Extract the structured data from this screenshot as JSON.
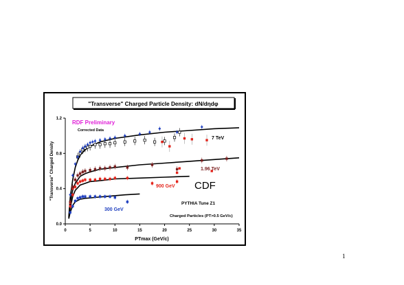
{
  "page_number": "1",
  "chart_data": {
    "type": "scatter",
    "title": "\"Transverse\" Charged Particle Density: dN/dηdφ",
    "xlabel": "PTmax  (GeV/c)",
    "ylabel": "\"Transverse\" Charged Density",
    "xlim": [
      0,
      35
    ],
    "ylim": [
      0,
      1.2
    ],
    "x_ticks": [
      "0",
      "5",
      "10",
      "15",
      "20",
      "25",
      "30",
      "35"
    ],
    "y_ticks": [
      "0.0",
      "0.4",
      "0.8",
      "1.2"
    ],
    "grid": false,
    "annotations": {
      "rdf": "RDF Preliminary",
      "corrected": "Corrected Data",
      "cdf": "CDF",
      "pythia": "PYTHIA Tune Z1",
      "charged": "Charged Particles (PT>0.5 GeV/c)"
    },
    "series": [
      {
        "name": "7 TeV",
        "color": "#1a1a1a",
        "data_marker": "blue-diamond",
        "data": [
          [
            1,
            0.33
          ],
          [
            1.5,
            0.55
          ],
          [
            2,
            0.68
          ],
          [
            2.5,
            0.76
          ],
          [
            3,
            0.82
          ],
          [
            3.5,
            0.86
          ],
          [
            4,
            0.88
          ],
          [
            4.5,
            0.9
          ],
          [
            5,
            0.92
          ],
          [
            5.5,
            0.93
          ],
          [
            6,
            0.94
          ],
          [
            7,
            0.95
          ],
          [
            8,
            0.96
          ],
          [
            9,
            0.97
          ],
          [
            10,
            0.98
          ],
          [
            12,
            1.0
          ],
          [
            15,
            1.02
          ],
          [
            17,
            1.04
          ],
          [
            19,
            1.08
          ],
          [
            22.5,
            1.04
          ],
          [
            27.5,
            1.1
          ]
        ],
        "corrected": [
          [
            2.5,
            0.76
          ],
          [
            3,
            0.8
          ],
          [
            3.5,
            0.84
          ],
          [
            4,
            0.86
          ],
          [
            4.5,
            0.87
          ],
          [
            5,
            0.88
          ],
          [
            6,
            0.9
          ],
          [
            7,
            0.9
          ],
          [
            8,
            0.91
          ],
          [
            9,
            0.91
          ],
          [
            10,
            0.92
          ],
          [
            12,
            0.93
          ],
          [
            14,
            0.94
          ],
          [
            16,
            0.95
          ],
          [
            18,
            0.93
          ],
          [
            20,
            0.94
          ],
          [
            22,
            0.98
          ],
          [
            23,
            1.04
          ]
        ],
        "red": [
          [
            19.5,
            0.93
          ],
          [
            21,
            0.88
          ],
          [
            24,
            0.97
          ],
          [
            25.5,
            0.96
          ],
          [
            28.5,
            0.95
          ]
        ],
        "curve": [
          [
            0.7,
            0.08
          ],
          [
            1,
            0.3
          ],
          [
            1.5,
            0.5
          ],
          [
            2,
            0.64
          ],
          [
            2.5,
            0.72
          ],
          [
            3,
            0.78
          ],
          [
            4,
            0.84
          ],
          [
            5,
            0.88
          ],
          [
            7,
            0.93
          ],
          [
            10,
            0.97
          ],
          [
            15,
            1.01
          ],
          [
            20,
            1.04
          ],
          [
            25,
            1.06
          ],
          [
            30,
            1.08
          ],
          [
            35,
            1.09
          ]
        ]
      },
      {
        "name": "1.96 TeV",
        "color": "#7a1f1f",
        "data": [
          [
            1,
            0.25
          ],
          [
            1.5,
            0.42
          ],
          [
            2,
            0.5
          ],
          [
            2.5,
            0.55
          ],
          [
            3,
            0.57
          ],
          [
            3.5,
            0.59
          ],
          [
            4,
            0.6
          ],
          [
            5,
            0.61
          ],
          [
            6,
            0.62
          ],
          [
            7,
            0.63
          ],
          [
            8,
            0.63
          ],
          [
            9,
            0.64
          ],
          [
            10,
            0.65
          ],
          [
            12.5,
            0.64
          ],
          [
            17.5,
            0.67
          ],
          [
            22.5,
            0.62
          ],
          [
            27.5,
            0.72
          ],
          [
            32.5,
            0.74
          ]
        ],
        "red": [
          [
            1,
            0.24
          ],
          [
            1.5,
            0.4
          ],
          [
            2,
            0.5
          ],
          [
            3,
            0.57
          ],
          [
            22.5,
            0.58
          ],
          [
            23,
            0.63
          ],
          [
            29.5,
            0.6
          ]
        ],
        "curve": [
          [
            0.7,
            0.07
          ],
          [
            1,
            0.24
          ],
          [
            1.5,
            0.38
          ],
          [
            2,
            0.46
          ],
          [
            3,
            0.54
          ],
          [
            4,
            0.57
          ],
          [
            5,
            0.59
          ],
          [
            7,
            0.62
          ],
          [
            10,
            0.64
          ],
          [
            15,
            0.67
          ],
          [
            20,
            0.69
          ],
          [
            25,
            0.71
          ],
          [
            30,
            0.73
          ],
          [
            35,
            0.75
          ]
        ]
      },
      {
        "name": "900 GeV",
        "color": "#e3241b",
        "data": [
          [
            1,
            0.2
          ],
          [
            1.5,
            0.33
          ],
          [
            2,
            0.42
          ],
          [
            2.5,
            0.46
          ],
          [
            3,
            0.48
          ],
          [
            3.5,
            0.49
          ],
          [
            4,
            0.5
          ],
          [
            5,
            0.5
          ],
          [
            6,
            0.5
          ],
          [
            7,
            0.51
          ],
          [
            8,
            0.51
          ],
          [
            9,
            0.51
          ],
          [
            10,
            0.52
          ],
          [
            12.5,
            0.52
          ],
          [
            17.5,
            0.46
          ],
          [
            22.5,
            0.48
          ]
        ],
        "curve": [
          [
            0.7,
            0.06
          ],
          [
            1,
            0.18
          ],
          [
            1.5,
            0.31
          ],
          [
            2,
            0.38
          ],
          [
            3,
            0.44
          ],
          [
            4,
            0.46
          ],
          [
            5,
            0.48
          ],
          [
            7,
            0.49
          ],
          [
            10,
            0.51
          ],
          [
            15,
            0.52
          ],
          [
            20,
            0.53
          ],
          [
            25,
            0.54
          ]
        ]
      },
      {
        "name": "300 GeV",
        "color": "#1f3fbf",
        "data": [
          [
            1,
            0.13
          ],
          [
            1.5,
            0.2
          ],
          [
            2,
            0.26
          ],
          [
            2.5,
            0.29
          ],
          [
            3,
            0.3
          ],
          [
            3.5,
            0.31
          ],
          [
            4,
            0.31
          ],
          [
            5,
            0.31
          ],
          [
            6,
            0.31
          ],
          [
            7,
            0.31
          ],
          [
            8,
            0.31
          ],
          [
            9,
            0.31
          ],
          [
            10,
            0.3
          ],
          [
            12.5,
            0.25
          ]
        ],
        "curve": [
          [
            0.7,
            0.06
          ],
          [
            1,
            0.13
          ],
          [
            1.5,
            0.21
          ],
          [
            2,
            0.25
          ],
          [
            3,
            0.28
          ],
          [
            4,
            0.29
          ],
          [
            6,
            0.3
          ],
          [
            8,
            0.31
          ],
          [
            10,
            0.32
          ],
          [
            12,
            0.33
          ],
          [
            15,
            0.34
          ]
        ]
      }
    ]
  }
}
